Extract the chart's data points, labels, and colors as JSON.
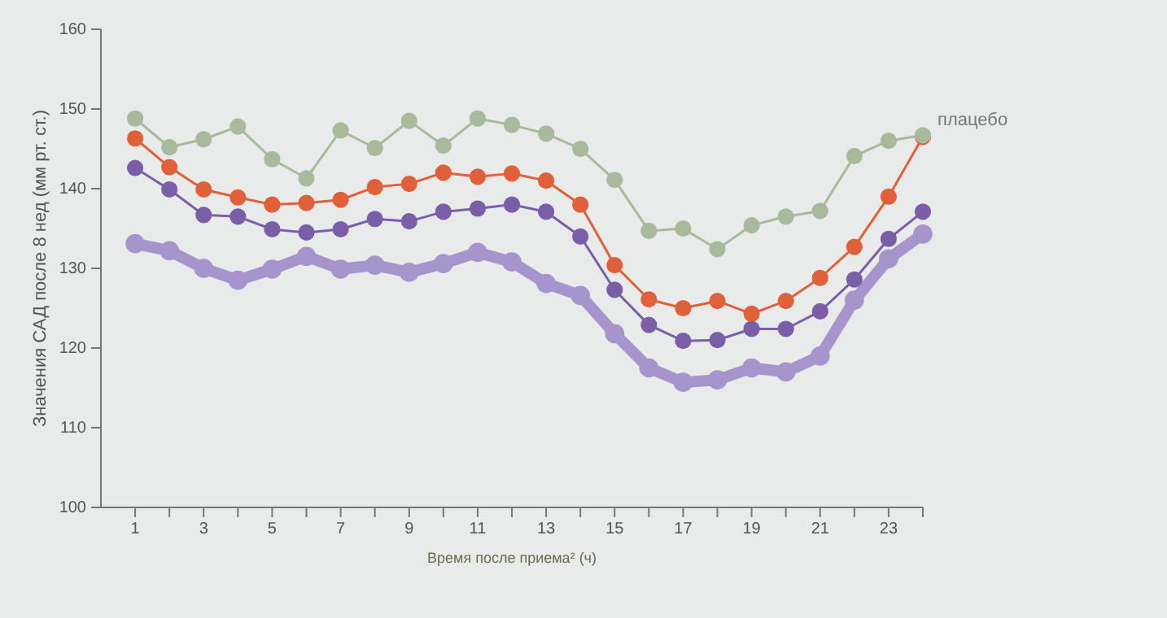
{
  "chart_data": {
    "type": "line",
    "xlabel": "Время после приема² (ч)",
    "ylabel": "Значения САД после 8 нед (мм рт. ст.)",
    "x": [
      1,
      2,
      3,
      4,
      5,
      6,
      7,
      8,
      9,
      10,
      11,
      12,
      13,
      14,
      15,
      16,
      17,
      18,
      19,
      20,
      21,
      22,
      23,
      24
    ],
    "xlim": [
      0,
      24
    ],
    "xticks": [
      1,
      {
        "value": 2,
        "label": null
      },
      3,
      {
        "value": 4,
        "label": null
      },
      5,
      {
        "value": 6,
        "label": null
      },
      7,
      {
        "value": 8,
        "label": null
      },
      9,
      {
        "value": 10,
        "label": null
      },
      11,
      {
        "value": 12,
        "label": null
      },
      13,
      {
        "value": 14,
        "label": null
      },
      15,
      {
        "value": 16,
        "label": null
      },
      17,
      {
        "value": 18,
        "label": null
      },
      19,
      {
        "value": 20,
        "label": null
      },
      21,
      {
        "value": 22,
        "label": null
      },
      23,
      {
        "value": 24,
        "label": null
      }
    ],
    "ylim": [
      100,
      160
    ],
    "yticks": [
      100,
      110,
      120,
      130,
      140,
      150,
      160
    ],
    "marker": "circle",
    "grid": false,
    "legend": "right",
    "series": [
      {
        "name": "плацебо",
        "color": "#a9b99b",
        "values": [
          148.8,
          145.2,
          146.2,
          147.8,
          143.7,
          141.3,
          147.3,
          145.1,
          148.5,
          145.4,
          148.8,
          148,
          146.9,
          145,
          141.1,
          134.7,
          135,
          132.4,
          135.4,
          136.5,
          137.2,
          144.1,
          146,
          146.7
        ]
      },
      {
        "color": "#e0603a",
        "values": [
          146.3,
          142.7,
          139.9,
          138.9,
          138,
          138.2,
          138.6,
          140.2,
          140.6,
          142,
          141.5,
          141.9,
          141,
          138,
          130.4,
          126.1,
          125,
          125.9,
          124.3,
          125.9,
          128.8,
          132.7,
          139,
          146.5
        ]
      },
      {
        "color": "#7a5fa8",
        "values": [
          142.6,
          139.9,
          136.7,
          136.5,
          134.9,
          134.5,
          134.9,
          136.2,
          135.9,
          137.1,
          137.5,
          138,
          137.1,
          134,
          127.3,
          122.9,
          120.9,
          121,
          122.4,
          122.4,
          124.6,
          128.6,
          133.7,
          137.1
        ]
      },
      {
        "color": "#a595cc",
        "values": [
          133.1,
          132.2,
          130,
          128.5,
          129.9,
          131.5,
          129.9,
          130.4,
          129.5,
          130.6,
          132,
          130.8,
          128.1,
          126.6,
          121.8,
          117.5,
          115.7,
          116,
          117.5,
          117,
          119,
          126,
          131.2,
          134.3
        ]
      }
    ]
  }
}
